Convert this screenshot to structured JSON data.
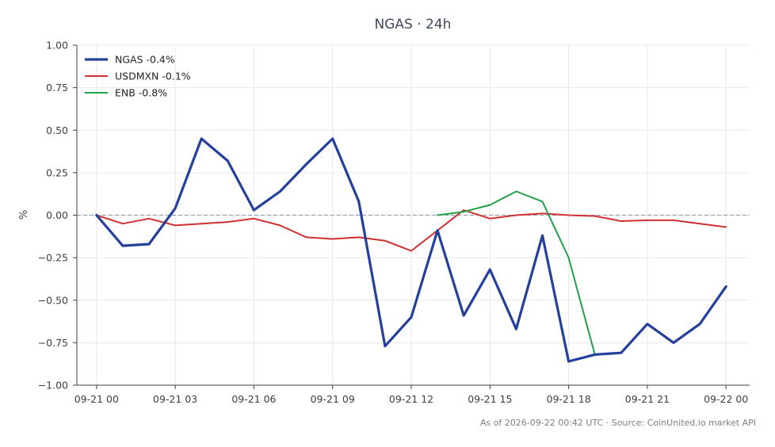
{
  "chart_data": {
    "type": "line",
    "title": "NGAS · 24h",
    "xlabel": "",
    "ylabel": "%",
    "ylim": [
      -1.0,
      1.0
    ],
    "xlim": [
      -0.75,
      24.9
    ],
    "xticks": [
      {
        "x": 0,
        "label": "09-21 00"
      },
      {
        "x": 3,
        "label": "09-21 03"
      },
      {
        "x": 6,
        "label": "09-21 06"
      },
      {
        "x": 9,
        "label": "09-21 09"
      },
      {
        "x": 12,
        "label": "09-21 12"
      },
      {
        "x": 15,
        "label": "09-21 15"
      },
      {
        "x": 18,
        "label": "09-21 18"
      },
      {
        "x": 21,
        "label": "09-21 21"
      },
      {
        "x": 24,
        "label": "09-22 00"
      }
    ],
    "yticks": [
      {
        "y": 1.0,
        "label": "1.00"
      },
      {
        "y": 0.75,
        "label": "0.75"
      },
      {
        "y": 0.5,
        "label": "0.50"
      },
      {
        "y": 0.25,
        "label": "0.25"
      },
      {
        "y": 0.0,
        "label": "0.00"
      },
      {
        "y": -0.25,
        "label": "−0.25"
      },
      {
        "y": -0.5,
        "label": "−0.50"
      },
      {
        "y": -0.75,
        "label": "−0.75"
      },
      {
        "y": -1.0,
        "label": "−1.00"
      }
    ],
    "grid": true,
    "zero_line": true,
    "legend_position": "top-left",
    "series": [
      {
        "name": "NGAS -0.4%",
        "color": "#24409a",
        "width": 3.2,
        "x": [
          0,
          1,
          2,
          3,
          4,
          5,
          6,
          7,
          8,
          9,
          10,
          11,
          12,
          13,
          14,
          15,
          16,
          17,
          18,
          19,
          20,
          21,
          22,
          23,
          24
        ],
        "values": [
          0.0,
          -0.18,
          -0.17,
          0.04,
          0.45,
          0.32,
          0.03,
          0.14,
          0.3,
          0.45,
          0.08,
          -0.77,
          -0.6,
          -0.09,
          -0.59,
          -0.32,
          -0.67,
          -0.12,
          -0.86,
          -0.82,
          -0.81,
          -0.64,
          -0.75,
          -0.64,
          -0.42
        ]
      },
      {
        "name": "USDMXN -0.1%",
        "color": "#d03030",
        "width": 2,
        "x": [
          0,
          1,
          2,
          3,
          4,
          5,
          6,
          7,
          8,
          9,
          10,
          11,
          12,
          13,
          14,
          15,
          16,
          17,
          18,
          19,
          20,
          21,
          22,
          23,
          24
        ],
        "values": [
          0.0,
          -0.05,
          -0.02,
          -0.06,
          -0.05,
          -0.04,
          -0.02,
          -0.06,
          -0.13,
          -0.14,
          -0.13,
          -0.15,
          -0.21,
          -0.09,
          0.03,
          -0.02,
          0.0,
          0.01,
          0.0,
          -0.005,
          -0.035,
          -0.03,
          -0.03,
          -0.05,
          -0.07
        ]
      },
      {
        "name": "ENB -0.8%",
        "color": "#22a04a",
        "width": 2,
        "x": [
          13,
          14,
          15,
          16,
          17,
          18,
          19
        ],
        "values": [
          0.0,
          0.02,
          0.06,
          0.14,
          0.08,
          -0.25,
          -0.82
        ]
      }
    ]
  },
  "footer": {
    "source": "As of 2026-09-22 00:42 UTC · Source: CoinUnited.io market API"
  }
}
